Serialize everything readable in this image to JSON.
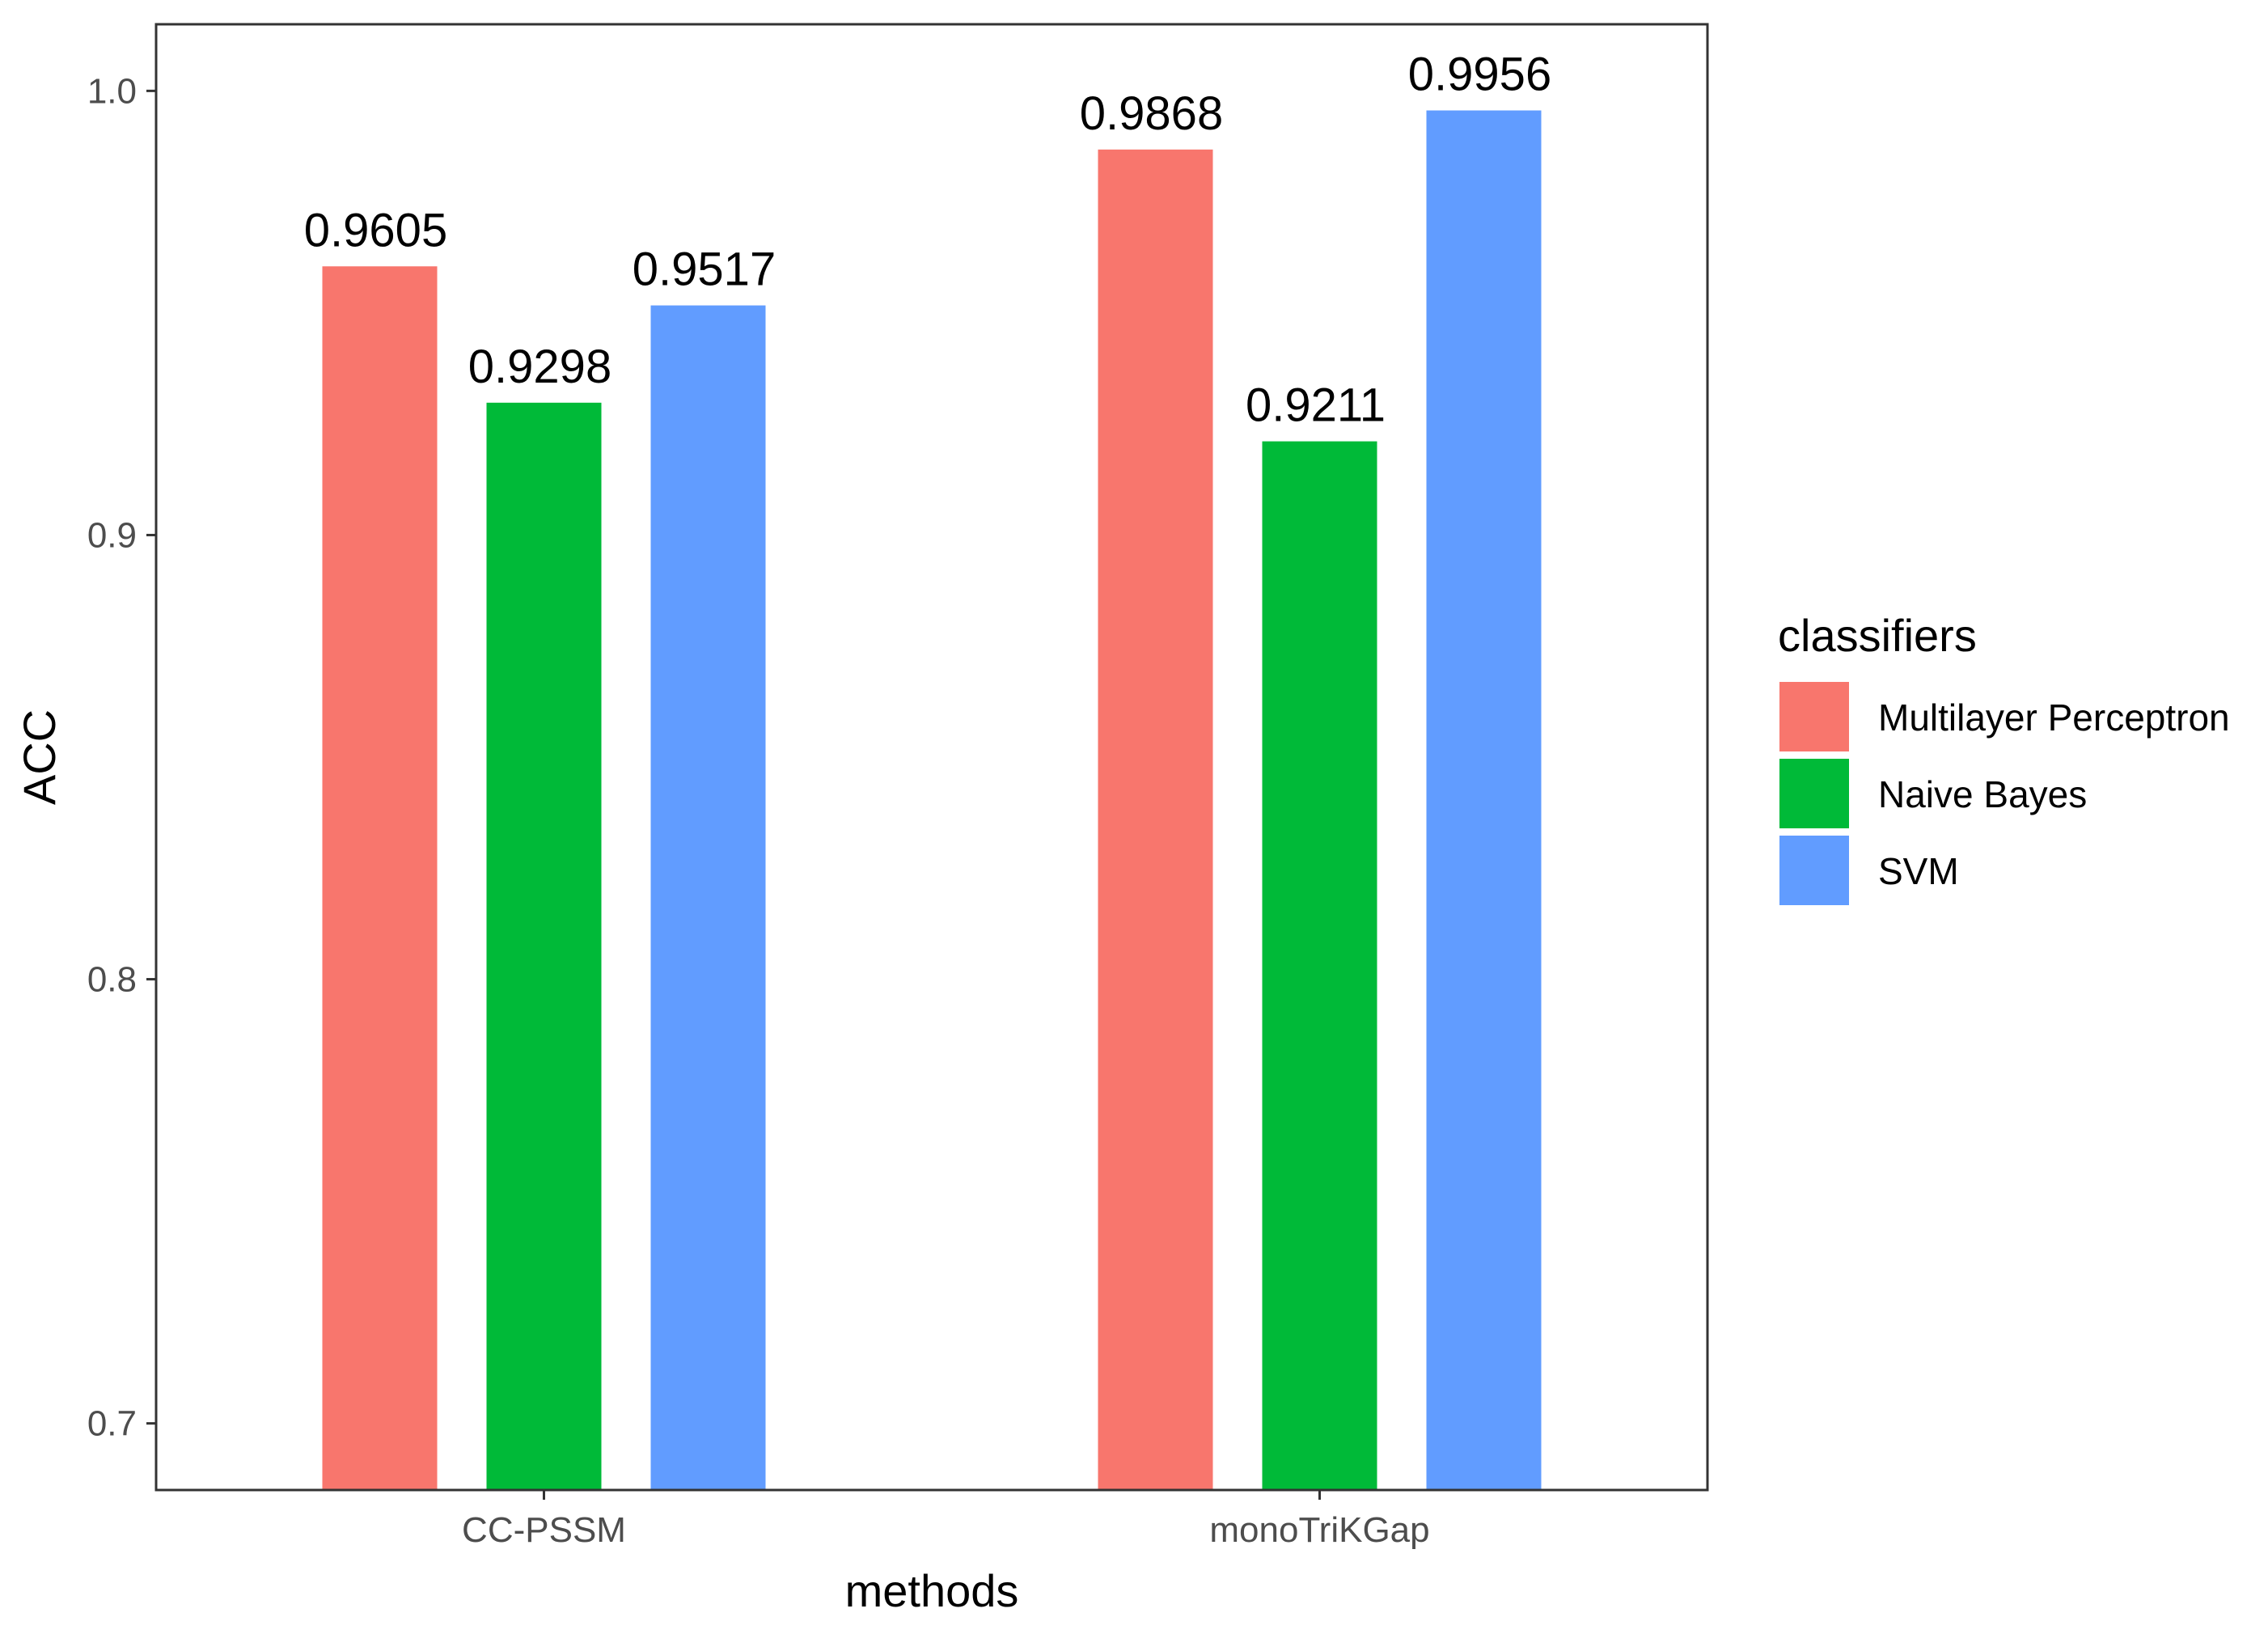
{
  "chart_data": {
    "type": "bar",
    "title": "",
    "xlabel": "methods",
    "ylabel": "ACC",
    "ylim": [
      0.685,
      1.015
    ],
    "yticks": [
      0.7,
      0.8,
      0.9,
      1.0
    ],
    "ytick_labels": [
      "0.7",
      "0.8",
      "0.9",
      "1.0"
    ],
    "categories": [
      "CC-PSSM",
      "monoTriKGap"
    ],
    "series": [
      {
        "name": "Multilayer Perceptron",
        "color": "#F8766D",
        "values": [
          0.9605,
          0.9868
        ],
        "labels": [
          "0.9605",
          "0.9868"
        ]
      },
      {
        "name": "Naive Bayes",
        "color": "#00BA38",
        "values": [
          0.9298,
          0.9211
        ],
        "labels": [
          "0.9298",
          "0.9211"
        ]
      },
      {
        "name": "SVM",
        "color": "#619CFF",
        "values": [
          0.9517,
          0.9956
        ],
        "labels": [
          "0.9517",
          "0.9956"
        ]
      }
    ],
    "grid": false,
    "legend": {
      "title": "classifiers",
      "placement": "right"
    }
  }
}
